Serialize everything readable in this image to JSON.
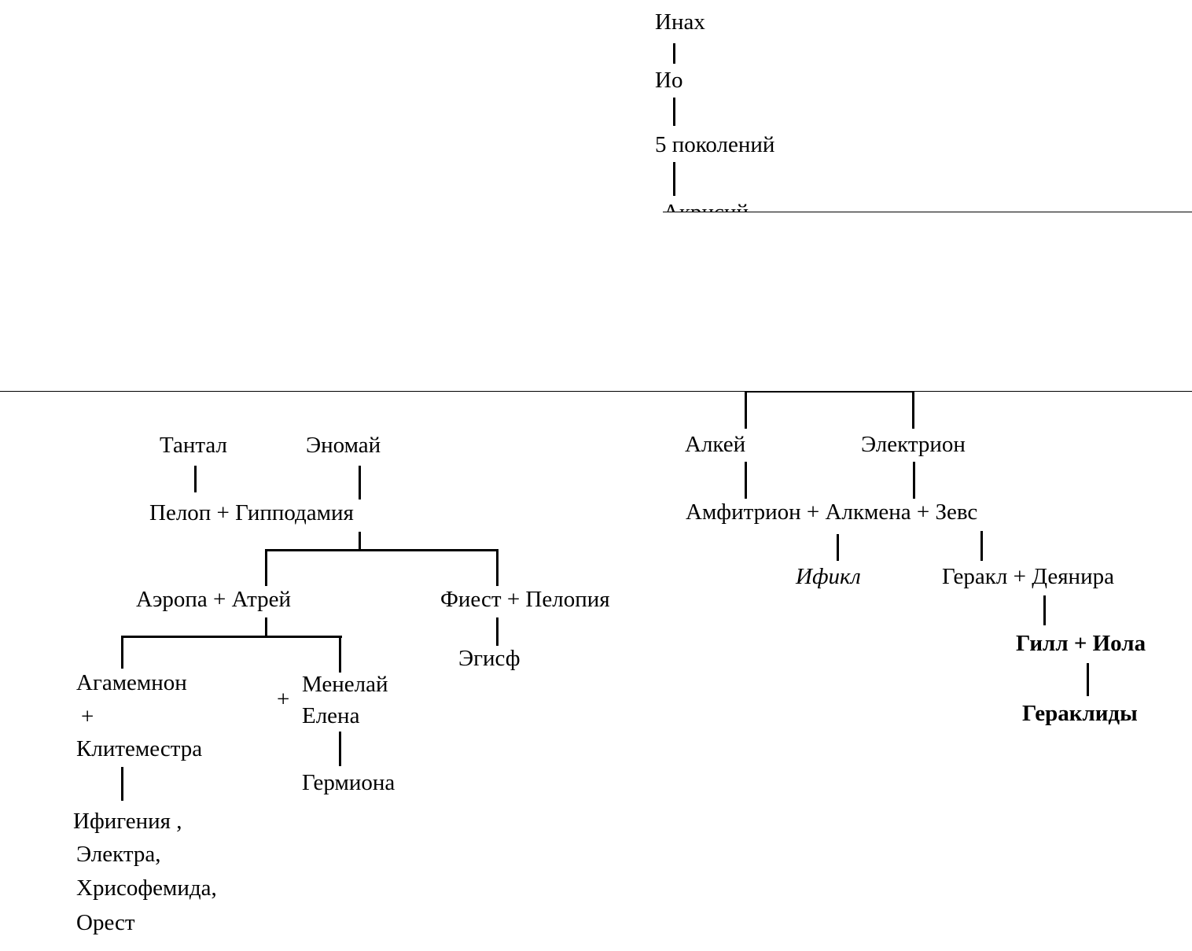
{
  "top": {
    "inachus": "Инах",
    "io": "Ио",
    "generations": "5 поколений",
    "acrisius": "Акрисий"
  },
  "left_tree": {
    "tantalus": "Тантал",
    "oenomaus": "Эномай",
    "pelops_couple": "Пелоп + Гипподамия",
    "atreus_couple": "Аэропа + Атрей",
    "thyestes_couple": "Фиест + Пелопия",
    "aegisthus": "Эгисф",
    "agamemnon": "Агамемнон",
    "plus": "+",
    "clytemnestra": "Клитеместра",
    "menelaus": "Менелай",
    "helen": "Елена",
    "hermione": "Гермиона",
    "children": [
      "Ифигения ,",
      "Электра,",
      "Хрисофемида,",
      "Орест"
    ]
  },
  "right_tree": {
    "alcaeus": "Алкей",
    "electryon": "Электрион",
    "amphitryon_couple": "Амфитрион + Алкмена + Зевс",
    "iphicles": "Ификл",
    "heracles_couple": "Геракл + Деянира",
    "hyllus_couple": "Гилл + Иола",
    "heraclidae": "Гераклиды"
  }
}
